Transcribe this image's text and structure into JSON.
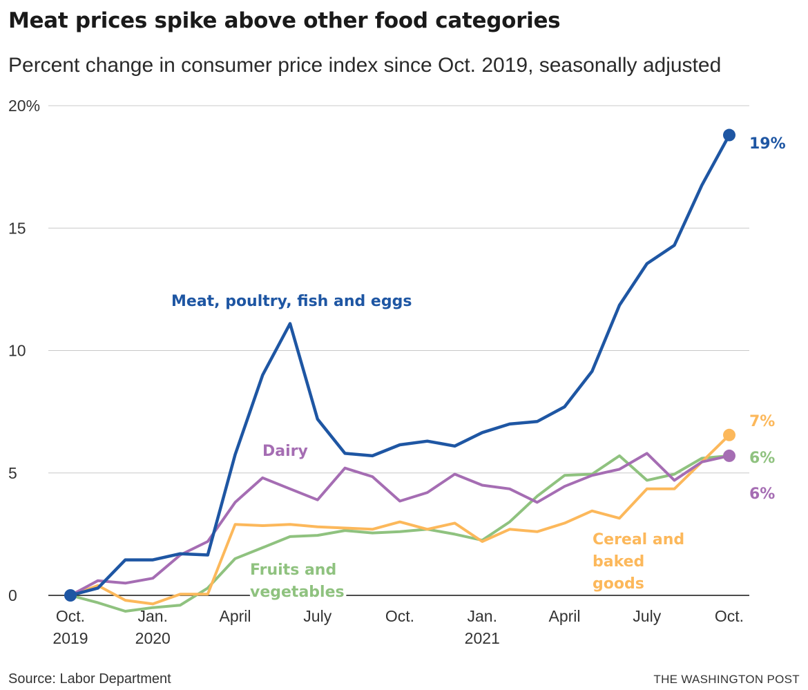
{
  "header": {
    "title": "Meat prices spike above other food categories",
    "subtitle": "Percent change in consumer price index since Oct. 2019, seasonally adjusted"
  },
  "footer": {
    "source": "Source: Labor Department",
    "credit": "THE WASHINGTON POST"
  },
  "chart_data": {
    "type": "line",
    "title": "Meat prices spike above other food categories",
    "subtitle": "Percent change in consumer price index since Oct. 2019, seasonally adjusted",
    "xlabel": "",
    "ylabel": "",
    "ylim": [
      0,
      20
    ],
    "y_ticks": [
      0,
      5,
      10,
      15,
      20
    ],
    "y_tick_labels": [
      "0",
      "5",
      "10",
      "15",
      "20%"
    ],
    "x": [
      "2019-10",
      "2019-11",
      "2019-12",
      "2020-01",
      "2020-02",
      "2020-03",
      "2020-04",
      "2020-05",
      "2020-06",
      "2020-07",
      "2020-08",
      "2020-09",
      "2020-10",
      "2020-11",
      "2020-12",
      "2021-01",
      "2021-02",
      "2021-03",
      "2021-04",
      "2021-05",
      "2021-06",
      "2021-07",
      "2021-08",
      "2021-09",
      "2021-10"
    ],
    "x_ticks": [
      {
        "x": "2019-10",
        "line1": "Oct.",
        "line2": "2019"
      },
      {
        "x": "2020-01",
        "line1": "Jan.",
        "line2": "2020"
      },
      {
        "x": "2020-04",
        "line1": "April",
        "line2": ""
      },
      {
        "x": "2020-07",
        "line1": "July",
        "line2": ""
      },
      {
        "x": "2020-10",
        "line1": "Oct.",
        "line2": ""
      },
      {
        "x": "2021-01",
        "line1": "Jan.",
        "line2": "2021"
      },
      {
        "x": "2021-04",
        "line1": "April",
        "line2": ""
      },
      {
        "x": "2021-07",
        "line1": "July",
        "line2": ""
      },
      {
        "x": "2021-10",
        "line1": "Oct.",
        "line2": ""
      }
    ],
    "grid": true,
    "series": [
      {
        "key": "fruits",
        "name": "Fruits and vegetables",
        "label_lines": [
          "Fruits and",
          "vegetables"
        ],
        "color": "#8fc27f",
        "end_label": "6%",
        "end_dot": false,
        "values": [
          0.0,
          -0.3,
          -0.65,
          -0.5,
          -0.4,
          0.3,
          1.5,
          1.95,
          2.4,
          2.45,
          2.65,
          2.55,
          2.6,
          2.7,
          2.5,
          2.25,
          3.0,
          4.05,
          4.9,
          4.95,
          5.7,
          4.7,
          4.95,
          5.6,
          5.7
        ]
      },
      {
        "key": "cereal",
        "name": "Cereal and baked goods",
        "label_lines": [
          "Cereal and",
          "baked",
          "goods"
        ],
        "color": "#fcb85b",
        "end_label": "7%",
        "end_dot": true,
        "values": [
          0.0,
          0.4,
          -0.2,
          -0.35,
          0.05,
          0.05,
          2.9,
          2.85,
          2.9,
          2.8,
          2.75,
          2.7,
          3.0,
          2.7,
          2.95,
          2.2,
          2.7,
          2.6,
          2.95,
          3.45,
          3.15,
          4.35,
          4.35,
          5.45,
          6.55
        ]
      },
      {
        "key": "dairy",
        "name": "Dairy",
        "label_lines": [
          "Dairy"
        ],
        "color": "#a56db3",
        "end_label": "6%",
        "end_dot": true,
        "values": [
          0.0,
          0.6,
          0.5,
          0.7,
          1.65,
          2.2,
          3.8,
          4.8,
          4.35,
          3.9,
          5.2,
          4.85,
          3.85,
          4.2,
          4.95,
          4.5,
          4.35,
          3.8,
          4.45,
          4.9,
          5.15,
          5.8,
          4.7,
          5.45,
          5.7
        ]
      },
      {
        "key": "meat",
        "name": "Meat, poultry, fish and eggs",
        "label_lines": [
          "Meat, poultry, fish and eggs"
        ],
        "color": "#1e56a3",
        "end_label": "19%",
        "end_dot": true,
        "values": [
          0.0,
          0.3,
          1.45,
          1.45,
          1.7,
          1.65,
          5.75,
          9.0,
          11.1,
          7.2,
          5.8,
          5.7,
          6.15,
          6.3,
          6.1,
          6.65,
          7.0,
          7.1,
          7.7,
          9.15,
          11.85,
          13.55,
          14.3,
          16.75,
          18.8
        ]
      }
    ],
    "start_point": {
      "x": "2019-10",
      "y": 0
    }
  }
}
